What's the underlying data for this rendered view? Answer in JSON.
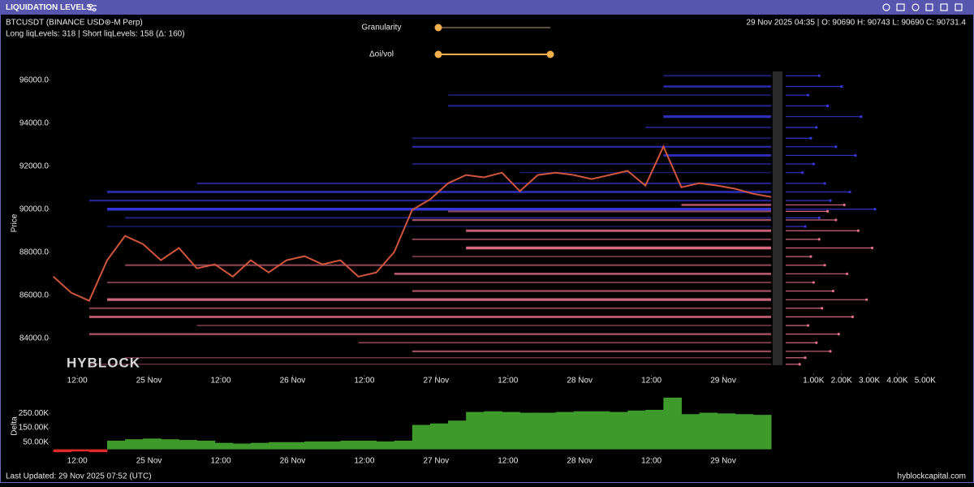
{
  "header": {
    "title": "LIQUIDATION LEVELS"
  },
  "info": {
    "symbol": "BTCUSDT (BINANCE USD⊛-M Perp)",
    "levels": "Long liqLevels: 318 | Short liqLevels: 158 (Δ: 160)",
    "ohlc": "29 Nov 2025 04:35 | O: 90690 H: 90743 L: 90690 C: 90731.4"
  },
  "controls": {
    "granularity": "Granularity",
    "oi_vol": "Δoi/vol"
  },
  "watermark": "HYBLOCK",
  "footer": {
    "updated": "Last Updated: 29 Nov 2025 07:52 (UTC)",
    "site": "hyblockcapital.com"
  },
  "chart_data": [
    {
      "type": "line",
      "y_label": "Price",
      "color": "#d0553d",
      "x": [
        "24 Nov 08:00",
        "24 Nov 11:00",
        "24 Nov 14:00",
        "24 Nov 17:00",
        "24 Nov 20:00",
        "24 Nov 23:00",
        "25 Nov 02:00",
        "25 Nov 05:00",
        "25 Nov 08:00",
        "25 Nov 11:00",
        "25 Nov 14:00",
        "25 Nov 17:00",
        "25 Nov 20:00",
        "25 Nov 23:00",
        "26 Nov 02:00",
        "26 Nov 05:00",
        "26 Nov 08:00",
        "26 Nov 11:00",
        "26 Nov 14:00",
        "26 Nov 17:00",
        "26 Nov 20:00",
        "26 Nov 23:00",
        "27 Nov 02:00",
        "27 Nov 05:00",
        "27 Nov 08:00",
        "27 Nov 11:00",
        "27 Nov 14:00",
        "27 Nov 17:00",
        "27 Nov 20:00",
        "27 Nov 23:00",
        "28 Nov 02:00",
        "28 Nov 05:00",
        "28 Nov 08:00",
        "28 Nov 11:00",
        "28 Nov 14:00",
        "28 Nov 17:00",
        "28 Nov 20:00",
        "28 Nov 23:00",
        "29 Nov 02:00",
        "29 Nov 05:00",
        "29 Nov 08:00"
      ],
      "values": [
        86870,
        86120,
        85750,
        87630,
        88760,
        88380,
        87630,
        88200,
        87250,
        87440,
        86870,
        87630,
        87060,
        87630,
        87820,
        87440,
        87630,
        86870,
        87060,
        88010,
        89970,
        90460,
        91210,
        91590,
        91480,
        91700,
        90840,
        91590,
        91700,
        91590,
        91400,
        91590,
        91780,
        91100,
        92910,
        91020,
        91210,
        91100,
        90950,
        90720,
        90570
      ],
      "xlim": [
        "24 Nov 07:30",
        "29 Nov 08:00"
      ],
      "xticks": [
        {
          "value": "24 Nov 12:00",
          "label": "12:00"
        },
        {
          "value": "25 Nov 00:00",
          "label": "25 Nov"
        },
        {
          "value": "25 Nov 12:00",
          "label": "12:00"
        },
        {
          "value": "26 Nov 00:00",
          "label": "26 Nov"
        },
        {
          "value": "26 Nov 12:00",
          "label": "12:00"
        },
        {
          "value": "27 Nov 00:00",
          "label": "27 Nov"
        },
        {
          "value": "27 Nov 12:00",
          "label": "12:00"
        },
        {
          "value": "28 Nov 00:00",
          "label": "28 Nov"
        },
        {
          "value": "28 Nov 12:00",
          "label": "12:00"
        },
        {
          "value": "29 Nov 00:00",
          "label": "29 Nov"
        }
      ],
      "ylim": [
        82300,
        96400
      ],
      "yticks": [
        {
          "value": 84000,
          "label": "84000.0"
        },
        {
          "value": 86000,
          "label": "86000.0"
        },
        {
          "value": 88000,
          "label": "88000.0"
        },
        {
          "value": 90000,
          "label": "90000.0"
        },
        {
          "value": 92000,
          "label": "92000.0"
        },
        {
          "value": 94000,
          "label": "94000.0"
        },
        {
          "value": 96000,
          "label": "96000.0"
        }
      ],
      "grid": false,
      "long_color": "#e8708a",
      "short_color": "#3838e0",
      "long_levels": {
        "prices": [
          90200,
          89900,
          89500,
          89000,
          88600,
          88200,
          87800,
          87400,
          87000,
          86600,
          86200,
          85800,
          85400,
          85000,
          84600,
          84200,
          83800,
          83400,
          83100,
          82800
        ],
        "from": [
          "28 Nov 17:00",
          "27 Nov 02:00",
          "26 Nov 20:00",
          "27 Nov 05:00",
          "26 Nov 20:00",
          "27 Nov 05:00",
          "26 Nov 20:00",
          "24 Nov 20:00",
          "26 Nov 17:00",
          "24 Nov 17:00",
          "26 Nov 20:00",
          "24 Nov 17:00",
          "24 Nov 14:00",
          "24 Nov 14:00",
          "25 Nov 08:00",
          "24 Nov 14:00",
          "26 Nov 11:00",
          "26 Nov 20:00",
          "24 Nov 20:00",
          "24 Nov 14:00"
        ],
        "sizes": [
          2100,
          1500,
          1800,
          2600,
          1200,
          3100,
          900,
          1400,
          2200,
          1000,
          1700,
          2900,
          1300,
          2400,
          800,
          1900,
          1100,
          1600,
          700,
          500
        ]
      },
      "short_levels": {
        "prices": [
          96200,
          95700,
          95300,
          94800,
          94300,
          93800,
          93300,
          92900,
          92500,
          92100,
          91700,
          91200,
          90800,
          90400,
          90000,
          89600,
          89200
        ],
        "from": [
          "28 Nov 14:00",
          "28 Nov 14:00",
          "27 Nov 02:00",
          "27 Nov 02:00",
          "28 Nov 14:00",
          "28 Nov 11:00",
          "26 Nov 20:00",
          "26 Nov 20:00",
          "28 Nov 14:00",
          "26 Nov 20:00",
          "27 Nov 14:00",
          "25 Nov 08:00",
          "24 Nov 17:00",
          "24 Nov 14:00",
          "24 Nov 17:00",
          "24 Nov 20:00",
          "24 Nov 17:00"
        ],
        "sizes": [
          1200,
          2000,
          800,
          1500,
          2700,
          1100,
          900,
          1800,
          2500,
          1000,
          600,
          1400,
          2300,
          1600,
          3200,
          1200,
          700
        ]
      },
      "side_xlim": [
        0,
        5500
      ],
      "side_xticks": [
        {
          "value": 1000,
          "label": "1.00K"
        },
        {
          "value": 2000,
          "label": "2.00K"
        },
        {
          "value": 3000,
          "label": "3.00K"
        },
        {
          "value": 4000,
          "label": "4.00K"
        },
        {
          "value": 5000,
          "label": "5.00K"
        }
      ]
    },
    {
      "type": "area",
      "y_label": "Delta",
      "positive_color": "#3f9a2c",
      "negative_color": "#e02a2a",
      "x": [
        "24 Nov 08:00",
        "24 Nov 11:00",
        "24 Nov 14:00",
        "24 Nov 17:00",
        "24 Nov 20:00",
        "24 Nov 23:00",
        "25 Nov 02:00",
        "25 Nov 05:00",
        "25 Nov 08:00",
        "25 Nov 11:00",
        "25 Nov 14:00",
        "25 Nov 17:00",
        "25 Nov 20:00",
        "25 Nov 23:00",
        "26 Nov 02:00",
        "26 Nov 05:00",
        "26 Nov 08:00",
        "26 Nov 11:00",
        "26 Nov 14:00",
        "26 Nov 17:00",
        "26 Nov 20:00",
        "26 Nov 23:00",
        "27 Nov 02:00",
        "27 Nov 05:00",
        "27 Nov 08:00",
        "27 Nov 11:00",
        "27 Nov 14:00",
        "27 Nov 17:00",
        "27 Nov 20:00",
        "27 Nov 23:00",
        "28 Nov 02:00",
        "28 Nov 05:00",
        "28 Nov 08:00",
        "28 Nov 11:00",
        "28 Nov 14:00",
        "28 Nov 17:00",
        "28 Nov 20:00",
        "28 Nov 23:00",
        "29 Nov 02:00",
        "29 Nov 05:00",
        "29 Nov 08:00"
      ],
      "values": [
        -20000,
        -15000,
        -20000,
        60000,
        70000,
        75000,
        70000,
        65000,
        60000,
        45000,
        40000,
        45000,
        50000,
        50000,
        55000,
        55000,
        60000,
        60000,
        55000,
        60000,
        170000,
        180000,
        200000,
        260000,
        265000,
        260000,
        255000,
        255000,
        260000,
        265000,
        265000,
        260000,
        270000,
        275000,
        360000,
        245000,
        255000,
        250000,
        245000,
        240000,
        235000
      ],
      "xlim": [
        "24 Nov 07:30",
        "29 Nov 08:00"
      ],
      "ylim": [
        -25000,
        365000
      ],
      "yticks": [
        {
          "value": 50000,
          "label": "50.00K"
        },
        {
          "value": 150000,
          "label": "150.00K"
        },
        {
          "value": 250000,
          "label": "250.00K"
        }
      ]
    }
  ]
}
